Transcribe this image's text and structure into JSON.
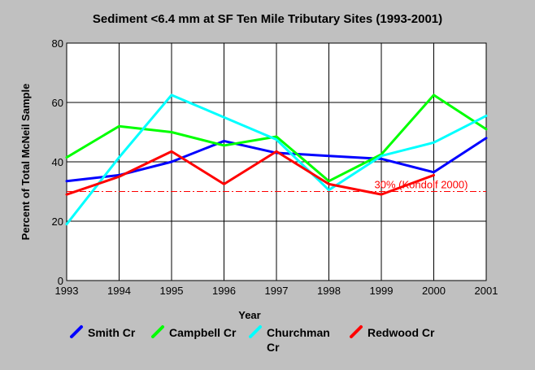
{
  "chart_data": {
    "type": "line",
    "title": "Sediment <6.4 mm at SF Ten Mile Tributary Sites (1993-2001)",
    "xlabel": "Year",
    "ylabel": "Percent of Total McNeil Sample",
    "x": [
      1993,
      1994,
      1995,
      1996,
      1997,
      1998,
      1999,
      2000,
      2001
    ],
    "ylim": [
      0,
      80
    ],
    "yticks": [
      0,
      20,
      40,
      60,
      80
    ],
    "grid": true,
    "legend_position": "bottom",
    "series": [
      {
        "name": "Smith Cr",
        "color": "#0000ff",
        "values": [
          33.5,
          35.5,
          40.0,
          47.0,
          43.0,
          42.0,
          41.0,
          36.5,
          48.0
        ]
      },
      {
        "name": "Campbell Cr",
        "color": "#00ff00",
        "values": [
          41.5,
          52.0,
          50.0,
          45.5,
          48.5,
          33.5,
          42.5,
          62.5,
          51.0
        ]
      },
      {
        "name": "Churchman Cr",
        "color": "#00ffff",
        "values": [
          19.0,
          41.5,
          62.5,
          55.0,
          47.5,
          30.5,
          42.0,
          46.5,
          55.5
        ]
      },
      {
        "name": "Redwood Cr",
        "color": "#ff0000",
        "values": [
          29.0,
          35.0,
          43.5,
          32.5,
          43.5,
          32.5,
          29.0,
          35.5,
          null
        ]
      }
    ],
    "reference_line": {
      "value": 30,
      "label": "30% (Kondolf 2000)",
      "color": "#ff0000"
    }
  }
}
